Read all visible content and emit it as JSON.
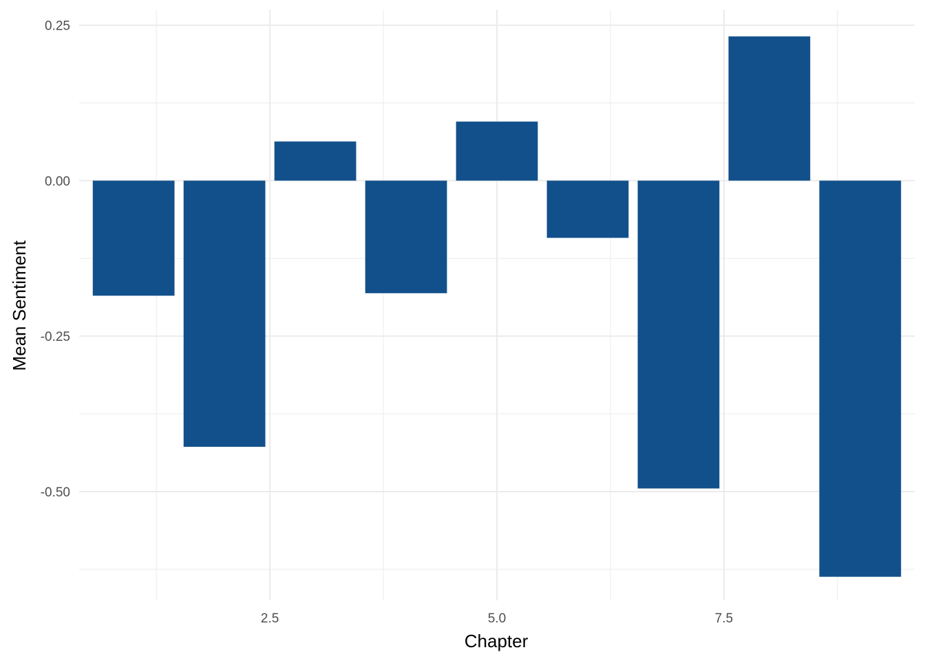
{
  "chart_data": {
    "type": "bar",
    "title": "",
    "xlabel": "Chapter",
    "ylabel": "Mean Sentiment",
    "x": [
      1,
      2,
      3,
      4,
      5,
      6,
      7,
      8,
      9
    ],
    "values": [
      -0.185,
      -0.428,
      0.063,
      -0.181,
      0.095,
      -0.092,
      -0.495,
      0.232,
      -0.637
    ],
    "xlim": [
      0.4,
      9.6
    ],
    "ylim": [
      -0.675,
      0.275
    ],
    "x_ticks": [
      2.5,
      5.0,
      7.5
    ],
    "x_tick_labels": [
      "2.5",
      "5.0",
      "7.5"
    ],
    "y_ticks": [
      -0.5,
      -0.25,
      0.0,
      0.25
    ],
    "y_tick_labels": [
      "-0.50",
      "-0.25",
      "0.00",
      "0.25"
    ],
    "bar_color": "#12508B",
    "grid": true,
    "grid_color": "#EBEBEB",
    "legend": "none"
  }
}
